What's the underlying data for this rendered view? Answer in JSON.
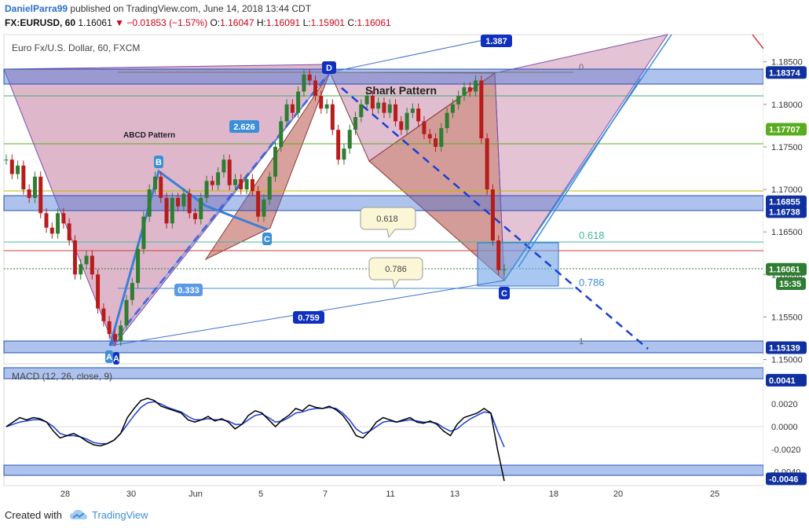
{
  "header": {
    "author": "DanielParra99",
    "published_text": "published on TradingView.com, June 14, 2018 13:44 CDT",
    "symbol": "FX:EURUSD, 60",
    "last": "1.16061",
    "change": "−0.01853 (−1.57%)",
    "ohlc": {
      "o_label": "O:",
      "o": "1.16047",
      "h_label": "H:",
      "h": "1.16091",
      "l_label": "L:",
      "l": "1.15901",
      "c_label": "C:",
      "c": "1.16061"
    }
  },
  "footer": {
    "created_with": "Created with",
    "brand": "TradingView"
  },
  "colors": {
    "bull": "#2e7d32",
    "bear": "#b71c1c",
    "macd": "#000000",
    "signal": "#1f3fd6",
    "pattern_fill": "#c27ba0",
    "zone_blue": "#4a78d8",
    "label_navy": "#1030c0"
  },
  "chart_data": {
    "type": "line",
    "title": "Euro Fx/U.S. Dollar, 60, FXCM",
    "ylim": [
      1.1495,
      1.1882
    ],
    "price_ticks": [
      "1.18500",
      "1.18000",
      "1.17500",
      "1.17000",
      "1.16500",
      "1.16000",
      "1.15500",
      "1.15000"
    ],
    "x_ticks": [
      "28",
      "30",
      "Jun",
      "5",
      "7",
      "11",
      "13",
      "18",
      "20",
      "25"
    ],
    "price_series": {
      "name": "EURUSD",
      "close": [
        1.1735,
        1.1718,
        1.1728,
        1.17,
        1.169,
        1.1715,
        1.1672,
        1.1655,
        1.1648,
        1.1672,
        1.166,
        1.164,
        1.16,
        1.1612,
        1.1622,
        1.16,
        1.156,
        1.1545,
        1.153,
        1.1522,
        1.154,
        1.157,
        1.159,
        1.163,
        1.1668,
        1.17,
        1.1715,
        1.169,
        1.166,
        1.169,
        1.168,
        1.1695,
        1.1672,
        1.1665,
        1.169,
        1.171,
        1.1705,
        1.172,
        1.1735,
        1.1705,
        1.1712,
        1.17,
        1.1712,
        1.1698,
        1.1668,
        1.1688,
        1.1715,
        1.175,
        1.178,
        1.18,
        1.179,
        1.1815,
        1.1835,
        1.1828,
        1.181,
        1.1795,
        1.18,
        1.177,
        1.1735,
        1.1748,
        1.177,
        1.1785,
        1.18,
        1.181,
        1.1795,
        1.1802,
        1.179,
        1.18,
        1.178,
        1.177,
        1.179,
        1.1795,
        1.178,
        1.1765,
        1.176,
        1.175,
        1.1772,
        1.179,
        1.18,
        1.181,
        1.182,
        1.1815,
        1.1828,
        1.176,
        1.17,
        1.164,
        1.1605,
        1.1606
      ]
    },
    "horizontal_levels": [
      {
        "label": "1.18374",
        "value": 1.18374,
        "color": "#4a78d8"
      },
      {
        "label": "1.17707",
        "value": 1.17707,
        "color": "#5aab1e"
      },
      {
        "label": "1.16855",
        "value": 1.16855,
        "color": "#4a78d8"
      },
      {
        "label": "1.16738",
        "value": 1.16738,
        "color": "#4a78d8"
      },
      {
        "label": "1.16061",
        "value": 1.16061,
        "color": "#2e7d32"
      },
      {
        "label": "1.15139",
        "value": 1.15139,
        "color": "#4a78d8"
      }
    ],
    "countdown_label": "15:35",
    "annotations": {
      "abcd_pattern": "ABCD Pattern",
      "shark_pattern": "Shark Pattern",
      "fib_0": "0",
      "fib_618": "0.618",
      "fib_786": "0.786",
      "fib_1": "1",
      "callout_618": "0.618",
      "callout_786": "0.786",
      "ratio_2626": "2.626",
      "ratio_0333": "0.333",
      "ratio_0759": "0.759",
      "ratio_1387": "1.387",
      "point_a": "A",
      "point_b": "B",
      "point_c": "C",
      "point_d": "D",
      "point_c_shark": "C",
      "point_a_small": "A"
    },
    "macd": {
      "title": "MACD (12, 26, close, 9)",
      "ylim": [
        -0.0052,
        0.0052
      ],
      "ticks": [
        "0.0020",
        "0.0000",
        "-0.0020",
        "-0.0040"
      ],
      "level_labels": [
        {
          "label": "0.0041",
          "value": 0.0041
        },
        {
          "label": "-0.0046",
          "value": -0.0046
        }
      ],
      "macd_line": [
        0.0,
        0.0004,
        0.0008,
        0.0006,
        0.0008,
        0.0007,
        0.0004,
        -0.0004,
        -0.001,
        -0.0008,
        -0.0006,
        -0.0009,
        -0.0013,
        -0.0016,
        -0.0017,
        -0.0015,
        -0.0012,
        -0.0006,
        0.0008,
        0.0016,
        0.0023,
        0.0025,
        0.0023,
        0.0018,
        0.0016,
        0.0014,
        0.0012,
        0.0006,
        0.0004,
        0.0006,
        0.0009,
        0.0005,
        0.0007,
        0.0004,
        -0.0002,
        0.0002,
        0.001,
        0.0014,
        0.0012,
        0.0006,
        0.0,
        0.0006,
        0.001,
        0.0016,
        0.0014,
        0.0019,
        0.0017,
        0.0016,
        0.0018,
        0.0015,
        0.001,
        0.0002,
        -0.0008,
        -0.001,
        -0.0004,
        0.0004,
        0.0008,
        0.0006,
        0.0004,
        0.0006,
        0.0008,
        0.0004,
        0.0003,
        0.0005,
        0.0002,
        -0.0004,
        -0.0008,
        0.0002,
        0.0008,
        0.001,
        0.0012,
        0.0016,
        0.0012,
        -0.002,
        -0.0048
      ],
      "signal_line": [
        0.0,
        0.0002,
        0.0004,
        0.0005,
        0.0006,
        0.0006,
        0.0004,
        0.0,
        -0.0006,
        -0.0008,
        -0.0008,
        -0.0009,
        -0.0011,
        -0.0014,
        -0.0015,
        -0.0015,
        -0.0012,
        -0.0006,
        0.0002,
        0.001,
        0.0017,
        0.0021,
        0.0022,
        0.002,
        0.0017,
        0.0015,
        0.0013,
        0.0009,
        0.0006,
        0.0006,
        0.0007,
        0.0006,
        0.0006,
        0.0005,
        0.0002,
        0.0002,
        0.0006,
        0.001,
        0.0011,
        0.0008,
        0.0004,
        0.0005,
        0.0008,
        0.0012,
        0.0013,
        0.0015,
        0.0016,
        0.0016,
        0.0017,
        0.0016,
        0.0012,
        0.0006,
        -0.0002,
        -0.0006,
        -0.0004,
        0.0,
        0.0004,
        0.0005,
        0.0004,
        0.0005,
        0.0006,
        0.0005,
        0.0004,
        0.0004,
        0.0003,
        -0.0001,
        -0.0004,
        -0.0002,
        0.0003,
        0.0007,
        0.001,
        0.0013,
        0.0012,
        -0.0004,
        -0.0018
      ]
    }
  }
}
